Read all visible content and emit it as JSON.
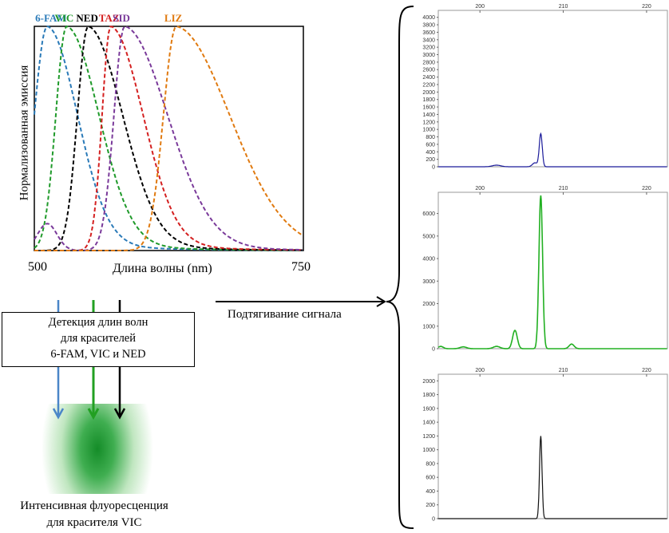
{
  "spectrum": {
    "dyes": [
      {
        "name": "6-FAM",
        "color": "#2a7ab8",
        "peak_nm": 512
      },
      {
        "name": "VIC",
        "color": "#1f9a2a",
        "peak_nm": 530
      },
      {
        "name": "NED",
        "color": "#000000",
        "peak_nm": 550
      },
      {
        "name": "TAZ",
        "color": "#d42020",
        "peak_nm": 571
      },
      {
        "name": "SID",
        "color": "#7a3a9a",
        "peak_nm": 584
      },
      {
        "name": "LIZ",
        "color": "#e07a10",
        "peak_nm": 632
      }
    ],
    "y_label": "Нормализованная эмиссия",
    "x_label": "Длина волны (nm)",
    "x_min": "500",
    "x_max": "750"
  },
  "detection_box": {
    "line1": "Детекция длин волн",
    "line2": "для красителей",
    "line3": "6-FAM, VIC и NED"
  },
  "pull_up_label": "Подтягивание сигнала",
  "result_caption": {
    "line1": "Интенсивная флуоресценция",
    "line2": "для красителя VIC"
  },
  "panels": [
    {
      "color": "#1a1a9a",
      "x_ticks": [
        "200",
        "210",
        "220"
      ],
      "y_ticks": [
        "0",
        "200",
        "400",
        "600",
        "800",
        "1000",
        "1200",
        "1400",
        "1600",
        "1800",
        "2000",
        "2200",
        "2400",
        "2600",
        "2800",
        "3000",
        "3200",
        "3400",
        "3600",
        "3800",
        "4000"
      ],
      "y_max": 4100,
      "peak_value": 880
    },
    {
      "color": "#22b022",
      "x_ticks": [
        "200",
        "210",
        "220"
      ],
      "y_ticks": [
        "0",
        "1000",
        "2000",
        "3000",
        "4000",
        "5000",
        "6000"
      ],
      "y_max": 6800,
      "peak_value": 6800
    },
    {
      "color": "#111111",
      "x_ticks": [
        "200",
        "210",
        "220"
      ],
      "y_ticks": [
        "0",
        "200",
        "400",
        "600",
        "800",
        "1000",
        "1200",
        "1400",
        "1600",
        "1800",
        "2000"
      ],
      "y_max": 2050,
      "peak_value": 1200
    }
  ]
}
